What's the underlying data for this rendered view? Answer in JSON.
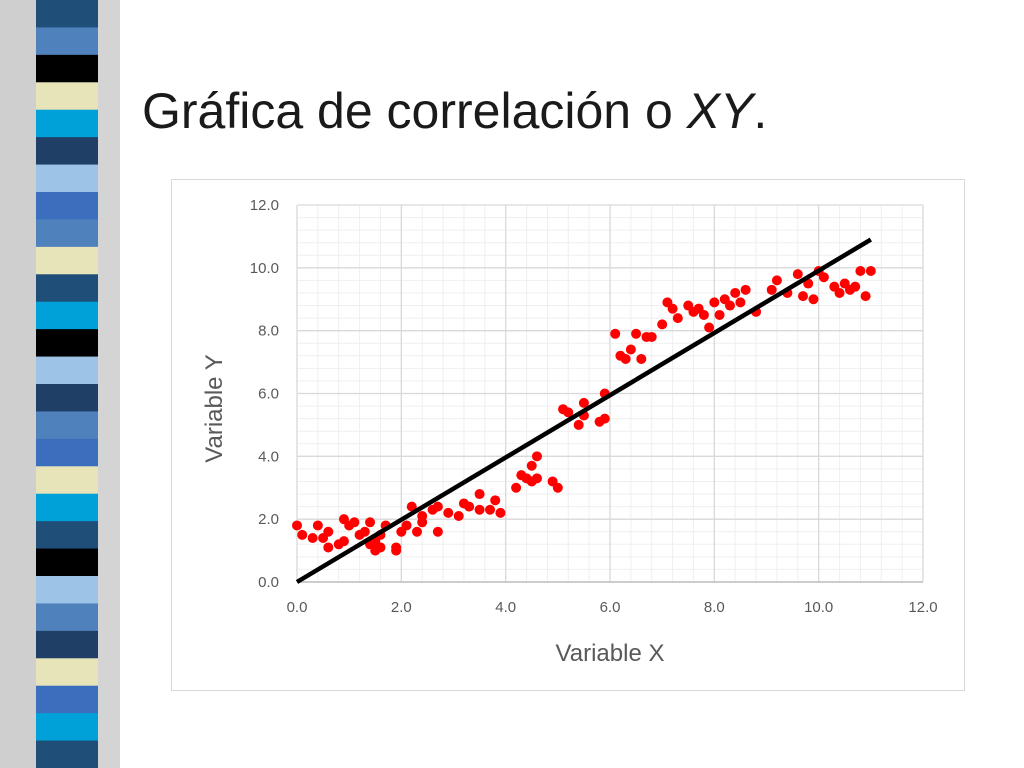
{
  "slide": {
    "title_main": "Gráfica de correlación o ",
    "title_italic": "XY",
    "title_end": "."
  },
  "colors": {
    "stripes": [
      "#1f4e79",
      "#4f81bd",
      "#000000",
      "#e6e4b8",
      "#00a0d8",
      "#1f3f66",
      "#9dc3e6",
      "#3b6fbd"
    ],
    "point": "#ff0000",
    "trendline": "#000000",
    "grid_major": "#d9d9d9",
    "grid_minor": "#efefef"
  },
  "chart_data": {
    "type": "scatter",
    "xlabel": "Variable X",
    "ylabel": "Variable Y",
    "xlim": [
      0,
      12
    ],
    "ylim": [
      0,
      12
    ],
    "x_ticks": [
      "0.0",
      "2.0",
      "4.0",
      "6.0",
      "8.0",
      "10.0",
      "12.0"
    ],
    "y_ticks": [
      "0.0",
      "2.0",
      "4.0",
      "6.0",
      "8.0",
      "10.0",
      "12.0"
    ],
    "grid": "major-and-minor",
    "legend": "none",
    "trendline": {
      "x": [
        0,
        11
      ],
      "y": [
        0,
        10.9
      ]
    },
    "points": [
      [
        0.0,
        1.8
      ],
      [
        0.1,
        1.5
      ],
      [
        0.3,
        1.4
      ],
      [
        0.4,
        1.8
      ],
      [
        0.5,
        1.4
      ],
      [
        0.6,
        1.1
      ],
      [
        0.6,
        1.6
      ],
      [
        0.8,
        1.2
      ],
      [
        0.9,
        1.3
      ],
      [
        0.9,
        2.0
      ],
      [
        1.0,
        1.8
      ],
      [
        1.1,
        1.9
      ],
      [
        1.2,
        1.5
      ],
      [
        1.3,
        1.6
      ],
      [
        1.4,
        1.2
      ],
      [
        1.4,
        1.9
      ],
      [
        1.5,
        1.0
      ],
      [
        1.5,
        1.3
      ],
      [
        1.6,
        1.1
      ],
      [
        1.6,
        1.5
      ],
      [
        1.7,
        1.8
      ],
      [
        1.9,
        1.0
      ],
      [
        1.9,
        1.1
      ],
      [
        2.0,
        1.6
      ],
      [
        2.1,
        1.8
      ],
      [
        2.2,
        2.4
      ],
      [
        2.3,
        1.6
      ],
      [
        2.4,
        1.9
      ],
      [
        2.4,
        2.1
      ],
      [
        2.6,
        2.3
      ],
      [
        2.7,
        1.6
      ],
      [
        2.7,
        2.4
      ],
      [
        2.9,
        2.2
      ],
      [
        3.1,
        2.1
      ],
      [
        3.2,
        2.5
      ],
      [
        3.3,
        2.4
      ],
      [
        3.5,
        2.3
      ],
      [
        3.5,
        2.8
      ],
      [
        3.7,
        2.3
      ],
      [
        3.8,
        2.6
      ],
      [
        3.9,
        2.2
      ],
      [
        4.2,
        3.0
      ],
      [
        4.3,
        3.4
      ],
      [
        4.4,
        3.3
      ],
      [
        4.5,
        3.2
      ],
      [
        4.5,
        3.7
      ],
      [
        4.6,
        3.3
      ],
      [
        4.6,
        4.0
      ],
      [
        4.9,
        3.2
      ],
      [
        5.0,
        3.0
      ],
      [
        5.1,
        5.5
      ],
      [
        5.2,
        5.4
      ],
      [
        5.4,
        5.0
      ],
      [
        5.5,
        5.3
      ],
      [
        5.5,
        5.7
      ],
      [
        5.8,
        5.1
      ],
      [
        5.9,
        5.2
      ],
      [
        5.9,
        6.0
      ],
      [
        6.1,
        7.9
      ],
      [
        6.2,
        7.2
      ],
      [
        6.3,
        7.1
      ],
      [
        6.4,
        7.4
      ],
      [
        6.5,
        7.9
      ],
      [
        6.6,
        7.1
      ],
      [
        6.7,
        7.8
      ],
      [
        6.8,
        7.8
      ],
      [
        7.0,
        8.2
      ],
      [
        7.1,
        8.9
      ],
      [
        7.2,
        8.7
      ],
      [
        7.3,
        8.4
      ],
      [
        7.5,
        8.8
      ],
      [
        7.6,
        8.6
      ],
      [
        7.7,
        8.7
      ],
      [
        7.8,
        8.5
      ],
      [
        7.9,
        8.1
      ],
      [
        8.0,
        8.9
      ],
      [
        8.1,
        8.5
      ],
      [
        8.2,
        9.0
      ],
      [
        8.3,
        8.8
      ],
      [
        8.4,
        9.2
      ],
      [
        8.5,
        8.9
      ],
      [
        8.6,
        9.3
      ],
      [
        8.8,
        8.6
      ],
      [
        9.1,
        9.3
      ],
      [
        9.2,
        9.6
      ],
      [
        9.4,
        9.2
      ],
      [
        9.6,
        9.8
      ],
      [
        9.7,
        9.1
      ],
      [
        9.8,
        9.5
      ],
      [
        9.9,
        9.0
      ],
      [
        10.0,
        9.9
      ],
      [
        10.1,
        9.7
      ],
      [
        10.3,
        9.4
      ],
      [
        10.4,
        9.2
      ],
      [
        10.5,
        9.5
      ],
      [
        10.6,
        9.3
      ],
      [
        10.7,
        9.4
      ],
      [
        10.8,
        9.9
      ],
      [
        10.9,
        9.1
      ],
      [
        11.0,
        9.9
      ]
    ]
  }
}
